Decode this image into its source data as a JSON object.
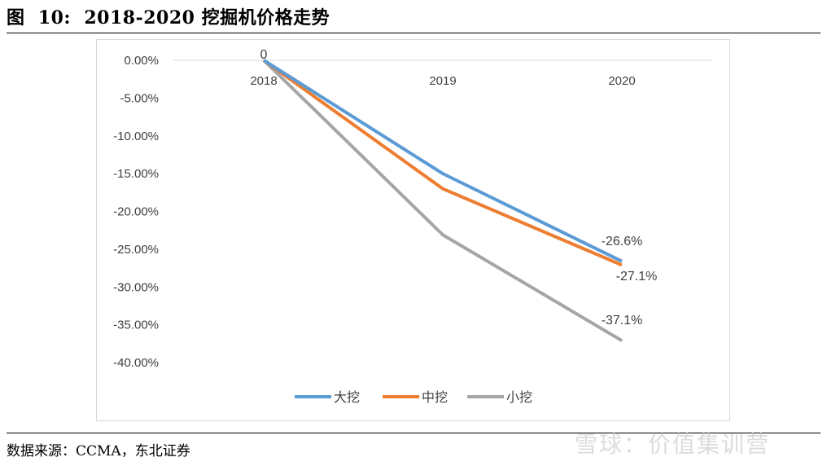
{
  "title": "图  10:  2018-2020 挖掘机价格走势",
  "source": "数据来源：CCMA，东北证券",
  "watermark": "雪球：价值集训营",
  "colors": {
    "大挖": "#5b9bd5",
    "中挖": "#ed7d31",
    "小挖": "#a5a5a5"
  },
  "chart_data": {
    "type": "line",
    "title": "",
    "xlabel": "",
    "ylabel": "",
    "categories": [
      "2018",
      "2019",
      "2020"
    ],
    "ylim": [
      -40,
      0
    ],
    "yticks": [
      "0.00%",
      "-5.00%",
      "-10.00%",
      "-15.00%",
      "-20.00%",
      "-25.00%",
      "-30.00%",
      "-35.00%",
      "-40.00%"
    ],
    "legend_position": "bottom",
    "series": [
      {
        "name": "大挖",
        "values": [
          0,
          -15.0,
          -26.6
        ],
        "labels": [
          "0",
          "",
          "-26.6%"
        ]
      },
      {
        "name": "中挖",
        "values": [
          0,
          -17.0,
          -27.1
        ],
        "labels": [
          "",
          "",
          "-27.1%"
        ]
      },
      {
        "name": "小挖",
        "values": [
          0,
          -23.1,
          -37.1
        ],
        "labels": [
          "",
          "",
          "-37.1%"
        ]
      }
    ]
  }
}
